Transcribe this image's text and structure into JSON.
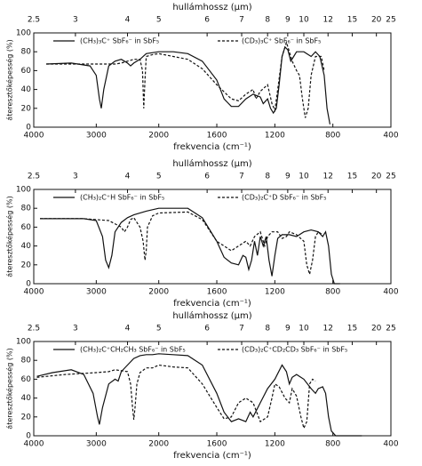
{
  "chart_data": [
    {
      "type": "line",
      "x2label": "hullámhossz (µm)",
      "xlabel": "frekvencia (cm⁻¹)",
      "ylabel": "áteresztőképesség (%)",
      "xlim": [
        4000,
        400
      ],
      "x_break": 2000,
      "xticks": [
        4000,
        3000,
        2000,
        1600,
        1200,
        800,
        400
      ],
      "x2ticks": [
        2.5,
        3,
        4,
        5,
        6,
        7,
        8,
        9,
        10,
        12,
        15,
        20,
        25
      ],
      "ylim": [
        0,
        100
      ],
      "yticks": [
        0,
        20,
        40,
        60,
        80,
        100
      ],
      "series": [
        {
          "name": "(CH₃)₃C⁺ SbF₆⁻ in SbF₅",
          "color": "#111",
          "dashed": false,
          "x": [
            3800,
            3400,
            3100,
            3000,
            2950,
            2920,
            2880,
            2800,
            2700,
            2600,
            2500,
            2450,
            2400,
            2300,
            2200,
            2000,
            1900,
            1800,
            1700,
            1600,
            1550,
            1500,
            1450,
            1400,
            1350,
            1300,
            1280,
            1250,
            1230,
            1210,
            1190,
            1170,
            1150,
            1130,
            1110,
            1090,
            1070,
            1050,
            1000,
            950,
            920,
            890,
            860,
            840,
            820
          ],
          "values": [
            67,
            68,
            65,
            55,
            30,
            20,
            40,
            65,
            70,
            72,
            68,
            65,
            68,
            72,
            78,
            80,
            80,
            78,
            70,
            50,
            30,
            22,
            22,
            30,
            35,
            32,
            25,
            30,
            20,
            15,
            20,
            45,
            75,
            85,
            82,
            70,
            75,
            80,
            80,
            75,
            80,
            75,
            55,
            20,
            3
          ]
        },
        {
          "name": "(CD₃)₃C⁺ SbF₆⁻ in SbF₅",
          "color": "#111",
          "dashed": true,
          "x": [
            3800,
            3000,
            2700,
            2600,
            2500,
            2400,
            2300,
            2260,
            2240,
            2220,
            2200,
            2100,
            2000,
            1900,
            1800,
            1700,
            1600,
            1500,
            1450,
            1400,
            1350,
            1330,
            1300,
            1250,
            1220,
            1200,
            1180,
            1150,
            1120,
            1100,
            1080,
            1050,
            1030,
            1010,
            990,
            970,
            950,
            920,
            880,
            860
          ],
          "values": [
            67,
            67,
            67,
            68,
            70,
            72,
            72,
            60,
            20,
            50,
            75,
            77,
            78,
            75,
            72,
            62,
            45,
            30,
            28,
            35,
            40,
            30,
            38,
            45,
            25,
            18,
            40,
            75,
            90,
            80,
            70,
            60,
            55,
            30,
            10,
            20,
            55,
            75,
            75,
            60
          ]
        }
      ]
    },
    {
      "type": "line",
      "x2label": "hullámhossz (µm)",
      "xlabel": "frekvencia (cm⁻¹)",
      "ylabel": "áteresztőképesség (%)",
      "xlim": [
        4000,
        400
      ],
      "x_break": 2000,
      "xticks": [
        4000,
        3000,
        2000,
        1600,
        1200,
        800,
        400
      ],
      "x2ticks": [
        2.5,
        3,
        4,
        5,
        6,
        7,
        8,
        9,
        10,
        12,
        15,
        20,
        25
      ],
      "ylim": [
        0,
        100
      ],
      "yticks": [
        0,
        20,
        40,
        60,
        80,
        100
      ],
      "series": [
        {
          "name": "(CH₃)₂C⁺H SbF₆⁻ in SbF₅",
          "color": "#111",
          "dashed": false,
          "x": [
            3900,
            3200,
            3000,
            2900,
            2850,
            2800,
            2750,
            2700,
            2600,
            2500,
            2400,
            2200,
            2000,
            1900,
            1800,
            1700,
            1600,
            1550,
            1500,
            1450,
            1420,
            1400,
            1380,
            1360,
            1340,
            1320,
            1300,
            1280,
            1260,
            1240,
            1220,
            1200,
            1180,
            1150,
            1100,
            1050,
            1000,
            950,
            900,
            870,
            850,
            830,
            810,
            790,
            750
          ],
          "values": [
            69,
            69,
            67,
            50,
            25,
            17,
            30,
            55,
            65,
            70,
            73,
            77,
            80,
            80,
            80,
            70,
            45,
            28,
            22,
            20,
            30,
            28,
            15,
            25,
            45,
            30,
            50,
            40,
            50,
            25,
            8,
            30,
            48,
            52,
            52,
            50,
            55,
            57,
            55,
            50,
            55,
            40,
            10,
            0,
            0
          ]
        },
        {
          "name": "(CD₃)₂C⁺D SbF₆⁻ in SbF₅",
          "color": "#111",
          "dashed": true,
          "x": [
            3900,
            3200,
            2800,
            2600,
            2550,
            2500,
            2450,
            2400,
            2300,
            2250,
            2220,
            2200,
            2180,
            2100,
            2000,
            1800,
            1700,
            1600,
            1500,
            1450,
            1400,
            1370,
            1340,
            1300,
            1270,
            1250,
            1220,
            1180,
            1150,
            1120,
            1100,
            1050,
            1000,
            980,
            960,
            940,
            920,
            900,
            870
          ],
          "values": [
            69,
            69,
            67,
            60,
            55,
            60,
            68,
            70,
            60,
            45,
            25,
            35,
            60,
            72,
            75,
            76,
            68,
            45,
            35,
            40,
            45,
            40,
            50,
            55,
            40,
            50,
            55,
            55,
            48,
            50,
            55,
            52,
            45,
            20,
            10,
            25,
            50,
            55,
            52
          ]
        }
      ]
    },
    {
      "type": "line",
      "x2label": "hullámhossz (µm)",
      "xlabel": "frekvencia (cm⁻¹)",
      "ylabel": "áteresztőképesség (%)",
      "xlim": [
        4000,
        400
      ],
      "x_break": 2000,
      "xticks": [
        4000,
        3000,
        2000,
        1600,
        1200,
        800,
        400
      ],
      "x2ticks": [
        2.5,
        3,
        4,
        5,
        6,
        7,
        8,
        9,
        10,
        12,
        15,
        20,
        25
      ],
      "ylim": [
        0,
        100
      ],
      "yticks": [
        0,
        20,
        40,
        60,
        80,
        100
      ],
      "series": [
        {
          "name": "(CH₃)₂C⁺CH₂CH₃ SbF₆⁻ in SbF₅",
          "color": "#111",
          "dashed": false,
          "x": [
            3950,
            3700,
            3400,
            3200,
            3050,
            2980,
            2950,
            2900,
            2800,
            2700,
            2650,
            2600,
            2500,
            2400,
            2300,
            2200,
            2100,
            2000,
            1900,
            1800,
            1700,
            1600,
            1550,
            1500,
            1450,
            1400,
            1370,
            1350,
            1300,
            1250,
            1200,
            1150,
            1120,
            1100,
            1080,
            1050,
            1000,
            950,
            920,
            900,
            870,
            850,
            830,
            810,
            780,
            700,
            600
          ],
          "values": [
            63,
            67,
            70,
            65,
            45,
            20,
            12,
            30,
            55,
            60,
            58,
            68,
            75,
            82,
            85,
            86,
            86,
            87,
            86,
            85,
            75,
            45,
            25,
            15,
            18,
            15,
            25,
            20,
            35,
            50,
            60,
            75,
            68,
            55,
            62,
            65,
            60,
            50,
            45,
            50,
            52,
            45,
            20,
            5,
            0,
            0,
            0
          ]
        },
        {
          "name": "(CD₃)₂C⁺CD₂CD₃ SbF₆⁻ in SbF₅",
          "color": "#111",
          "dashed": true,
          "x": [
            3950,
            3500,
            3000,
            2800,
            2700,
            2500,
            2450,
            2420,
            2400,
            2380,
            2350,
            2300,
            2200,
            2100,
            2000,
            1900,
            1800,
            1700,
            1600,
            1550,
            1500,
            1450,
            1400,
            1350,
            1300,
            1250,
            1220,
            1200,
            1170,
            1130,
            1100,
            1080,
            1050,
            1020,
            1000,
            980,
            960,
            940,
            920
          ],
          "values": [
            62,
            65,
            67,
            68,
            70,
            68,
            55,
            30,
            17,
            30,
            55,
            67,
            72,
            72,
            75,
            73,
            72,
            55,
            30,
            18,
            20,
            35,
            40,
            35,
            15,
            20,
            40,
            55,
            52,
            40,
            35,
            50,
            42,
            20,
            8,
            15,
            55,
            60,
            58
          ]
        }
      ]
    }
  ]
}
